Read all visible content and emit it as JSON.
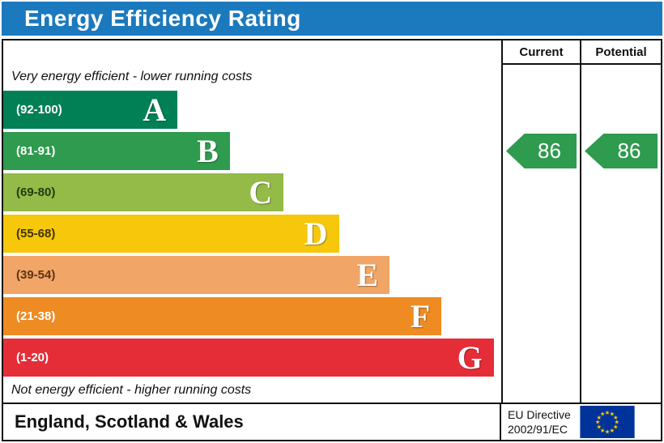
{
  "title": "Energy Efficiency Rating",
  "theme": {
    "title_bg": "#1b79be",
    "title_color": "#ffffff",
    "border_color": "#111111",
    "eu_flag_blue": "#003399",
    "eu_flag_star": "#ffcc00"
  },
  "columns": {
    "current": "Current",
    "potential": "Potential"
  },
  "notes": {
    "top": "Very energy efficient - lower running costs",
    "bottom": "Not energy efficient - higher running costs"
  },
  "bands": [
    {
      "grade": "A",
      "range": "(92-100)",
      "color": "#008054",
      "range_color": "#ffffff",
      "width_pct": 35
    },
    {
      "grade": "B",
      "range": "(81-91)",
      "color": "#2e9b4e",
      "range_color": "#ffffff",
      "width_pct": 45.5
    },
    {
      "grade": "C",
      "range": "(69-80)",
      "color": "#94ba47",
      "range_color": "#1c3d10",
      "width_pct": 56.3
    },
    {
      "grade": "D",
      "range": "(55-68)",
      "color": "#f6c70b",
      "range_color": "#3f3300",
      "width_pct": 67.4
    },
    {
      "grade": "E",
      "range": "(39-54)",
      "color": "#f1a566",
      "range_color": "#5c3413",
      "width_pct": 77.6
    },
    {
      "grade": "F",
      "range": "(21-38)",
      "color": "#ee8b23",
      "range_color": "#ffffff",
      "width_pct": 88
    },
    {
      "grade": "G",
      "range": "(1-20)",
      "color": "#e52d37",
      "range_color": "#ffffff",
      "width_pct": 98.5
    }
  ],
  "ratings": {
    "current": {
      "value": "86",
      "band": "B",
      "band_index": 1,
      "color": "#2e9b4e"
    },
    "potential": {
      "value": "86",
      "band": "B",
      "band_index": 1,
      "color": "#2e9b4e"
    }
  },
  "footer": {
    "region": "England, Scotland & Wales",
    "directive_line1": "EU Directive",
    "directive_line2": "2002/91/EC"
  },
  "chart_data": {
    "type": "bar",
    "title": "Energy Efficiency Rating",
    "categories": [
      "A (92-100)",
      "B (81-91)",
      "C (69-80)",
      "D (55-68)",
      "E (39-54)",
      "F (21-38)",
      "G (1-20)"
    ],
    "bar_length_pct": [
      35,
      45.5,
      56.3,
      67.4,
      77.6,
      88,
      98.5
    ],
    "band_colors": [
      "#008054",
      "#2e9b4e",
      "#94ba47",
      "#f6c70b",
      "#f1a566",
      "#ee8b23",
      "#e52d37"
    ],
    "series": [
      {
        "name": "Current",
        "value": 86,
        "band": "B"
      },
      {
        "name": "Potential",
        "value": 86,
        "band": "B"
      }
    ],
    "top_label": "Very energy efficient - lower running costs",
    "bottom_label": "Not energy efficient - higher running costs",
    "columns": [
      "Current",
      "Potential"
    ],
    "footer_region": "England, Scotland & Wales",
    "footer_directive": "EU Directive 2002/91/EC",
    "legend_position": "none",
    "grid": false
  }
}
